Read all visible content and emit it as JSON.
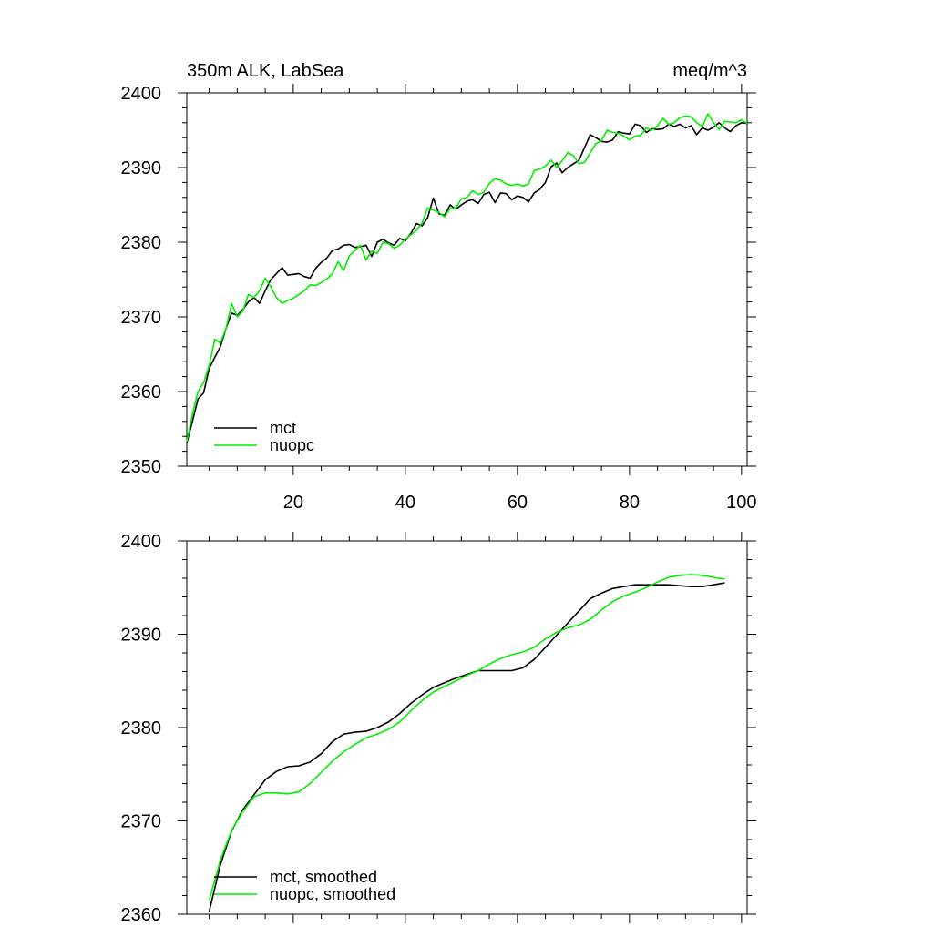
{
  "chart_data": [
    {
      "type": "line",
      "title": "350m ALK, LabSea",
      "units": "meq/m^3",
      "xlim": [
        1,
        101
      ],
      "ylim": [
        2350,
        2400
      ],
      "xticks": [
        20,
        40,
        60,
        80,
        100
      ],
      "yticks": [
        2350,
        2360,
        2370,
        2380,
        2390,
        2400
      ],
      "legend_position": "bottom-left",
      "series": [
        {
          "name": "mct",
          "color": "#000000",
          "x": [
            1,
            2,
            3,
            4,
            5,
            6,
            7,
            8,
            9,
            10,
            11,
            12,
            13,
            14,
            15,
            16,
            17,
            18,
            19,
            20,
            21,
            22,
            23,
            24,
            25,
            26,
            27,
            28,
            29,
            30,
            31,
            32,
            33,
            34,
            35,
            36,
            37,
            38,
            39,
            40,
            41,
            42,
            43,
            44,
            45,
            46,
            47,
            48,
            49,
            50,
            51,
            52,
            53,
            54,
            55,
            56,
            57,
            58,
            59,
            60,
            61,
            62,
            63,
            64,
            65,
            66,
            67,
            68,
            69,
            70,
            71,
            72,
            73,
            74,
            75,
            76,
            77,
            78,
            79,
            80,
            81,
            82,
            83,
            84,
            85,
            86,
            87,
            88,
            89,
            90,
            91,
            92,
            93,
            94,
            95,
            96,
            97,
            98,
            99,
            100,
            101
          ],
          "values": [
            2353.1,
            2356.0,
            2359.0,
            2359.8,
            2363.1,
            2364.6,
            2366.0,
            2368.5,
            2370.5,
            2370.2,
            2371.0,
            2372.0,
            2372.6,
            2371.8,
            2373.5,
            2375.0,
            2375.8,
            2376.6,
            2375.6,
            2375.7,
            2375.8,
            2375.4,
            2375.2,
            2376.5,
            2377.3,
            2377.9,
            2378.9,
            2379.1,
            2379.6,
            2379.7,
            2379.3,
            2379.4,
            2379.6,
            2378.1,
            2380.0,
            2380.4,
            2379.9,
            2379.6,
            2380.5,
            2380.2,
            2381.2,
            2382.5,
            2382.2,
            2383.3,
            2385.9,
            2383.8,
            2383.6,
            2385.0,
            2384.4,
            2385.0,
            2385.5,
            2385.7,
            2385.2,
            2386.4,
            2386.7,
            2385.3,
            2386.6,
            2386.5,
            2385.7,
            2386.2,
            2386.0,
            2385.4,
            2386.6,
            2387.1,
            2388.0,
            2390.1,
            2390.6,
            2389.3,
            2390.0,
            2390.5,
            2391.0,
            2392.7,
            2394.4,
            2394.0,
            2393.5,
            2393.4,
            2393.7,
            2394.8,
            2394.6,
            2394.5,
            2395.8,
            2395.6,
            2394.7,
            2395.2,
            2395.1,
            2395.2,
            2395.8,
            2395.5,
            2395.8,
            2395.3,
            2395.6,
            2394.4,
            2395.3,
            2395.0,
            2395.4,
            2396.0,
            2395.3,
            2394.8,
            2395.6,
            2396.0,
            2395.9
          ]
        },
        {
          "name": "nuopc",
          "color": "#00ee00",
          "x": [
            1,
            2,
            3,
            4,
            5,
            6,
            7,
            8,
            9,
            10,
            11,
            12,
            13,
            14,
            15,
            16,
            17,
            18,
            19,
            20,
            21,
            22,
            23,
            24,
            25,
            26,
            27,
            28,
            29,
            30,
            31,
            32,
            33,
            34,
            35,
            36,
            37,
            38,
            39,
            40,
            41,
            42,
            43,
            44,
            45,
            46,
            47,
            48,
            49,
            50,
            51,
            52,
            53,
            54,
            55,
            56,
            57,
            58,
            59,
            60,
            61,
            62,
            63,
            64,
            65,
            66,
            67,
            68,
            69,
            70,
            71,
            72,
            73,
            74,
            75,
            76,
            77,
            78,
            79,
            80,
            81,
            82,
            83,
            84,
            85,
            86,
            87,
            88,
            89,
            90,
            91,
            92,
            93,
            94,
            95,
            96,
            97,
            98,
            99,
            100,
            101
          ],
          "values": [
            2353.3,
            2357.0,
            2360.0,
            2361.2,
            2363.5,
            2367.0,
            2366.5,
            2368.5,
            2371.8,
            2370.0,
            2370.8,
            2373.0,
            2372.6,
            2373.5,
            2375.2,
            2374.0,
            2372.6,
            2371.8,
            2372.2,
            2372.5,
            2373.0,
            2373.5,
            2374.3,
            2374.2,
            2374.6,
            2375.1,
            2375.8,
            2377.4,
            2376.2,
            2378.2,
            2378.9,
            2379.6,
            2377.6,
            2378.8,
            2378.5,
            2380.0,
            2379.8,
            2379.2,
            2379.6,
            2380.4,
            2381.0,
            2381.6,
            2382.6,
            2384.6,
            2384.3,
            2384.0,
            2383.4,
            2384.5,
            2384.6,
            2385.8,
            2386.0,
            2386.9,
            2386.4,
            2386.7,
            2387.9,
            2388.5,
            2388.3,
            2387.8,
            2387.6,
            2387.8,
            2387.5,
            2387.8,
            2389.6,
            2389.8,
            2390.2,
            2391.0,
            2390.0,
            2390.9,
            2392.0,
            2391.6,
            2390.5,
            2390.7,
            2392.0,
            2393.2,
            2393.6,
            2395.0,
            2394.7,
            2394.6,
            2394.2,
            2393.7,
            2394.2,
            2394.3,
            2395.3,
            2395.0,
            2395.6,
            2396.6,
            2395.8,
            2396.0,
            2396.7,
            2396.9,
            2396.8,
            2396.0,
            2395.5,
            2397.2,
            2396.0,
            2395.1,
            2396.2,
            2396.1,
            2396.0,
            2396.4,
            2395.9
          ]
        }
      ]
    },
    {
      "type": "line",
      "title": "",
      "xlim": [
        1,
        101
      ],
      "ylim": [
        2360,
        2400
      ],
      "xticks": [
        20,
        40,
        60,
        80,
        100
      ],
      "yticks": [
        2360,
        2370,
        2380,
        2390,
        2400
      ],
      "legend_position": "bottom-left",
      "series": [
        {
          "name": "mct, smoothed",
          "color": "#000000",
          "x": [
            5,
            7,
            9,
            11,
            13,
            15,
            17,
            19,
            21,
            23,
            25,
            27,
            29,
            31,
            33,
            35,
            37,
            39,
            41,
            43,
            45,
            47,
            49,
            51,
            53,
            55,
            57,
            59,
            61,
            63,
            65,
            67,
            69,
            71,
            73,
            75,
            77,
            79,
            81,
            83,
            85,
            87,
            89,
            91,
            93,
            95,
            97
          ],
          "values": [
            2360.3,
            2365.3,
            2368.9,
            2371.2,
            2372.8,
            2374.4,
            2375.3,
            2375.8,
            2375.9,
            2376.3,
            2377.2,
            2378.5,
            2379.3,
            2379.5,
            2379.6,
            2380.0,
            2380.6,
            2381.5,
            2382.6,
            2383.5,
            2384.3,
            2384.8,
            2385.3,
            2385.7,
            2386.1,
            2386.1,
            2386.1,
            2386.1,
            2386.4,
            2387.3,
            2388.6,
            2389.9,
            2391.2,
            2392.5,
            2393.8,
            2394.4,
            2394.9,
            2395.1,
            2395.3,
            2395.3,
            2395.3,
            2395.3,
            2395.2,
            2395.1,
            2395.1,
            2395.3,
            2395.5
          ]
        },
        {
          "name": "nuopc, smoothed",
          "color": "#00ee00",
          "x": [
            5,
            7,
            9,
            11,
            13,
            15,
            17,
            19,
            21,
            23,
            25,
            27,
            29,
            31,
            33,
            35,
            37,
            39,
            41,
            43,
            45,
            47,
            49,
            51,
            53,
            55,
            57,
            59,
            61,
            63,
            65,
            67,
            69,
            71,
            73,
            75,
            77,
            79,
            81,
            83,
            85,
            87,
            89,
            91,
            93,
            95,
            97
          ],
          "values": [
            2361.5,
            2365.8,
            2369.0,
            2371.0,
            2372.6,
            2373.0,
            2373.0,
            2372.9,
            2373.1,
            2374.0,
            2375.2,
            2376.4,
            2377.4,
            2378.2,
            2378.9,
            2379.3,
            2379.8,
            2380.6,
            2381.8,
            2382.9,
            2383.8,
            2384.4,
            2385.0,
            2385.6,
            2386.1,
            2386.8,
            2387.4,
            2387.8,
            2388.1,
            2388.6,
            2389.5,
            2390.2,
            2390.7,
            2391.0,
            2391.6,
            2392.6,
            2393.5,
            2394.1,
            2394.5,
            2395.0,
            2395.6,
            2396.1,
            2396.3,
            2396.4,
            2396.3,
            2396.1,
            2395.9
          ]
        }
      ]
    }
  ]
}
